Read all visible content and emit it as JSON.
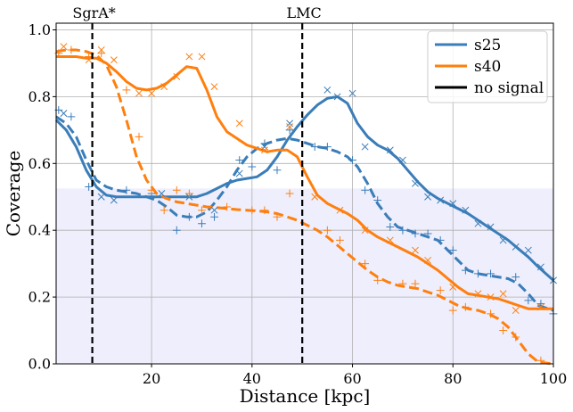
{
  "chart_data": {
    "type": "line",
    "title": "",
    "xlabel": "Distance [kpc]",
    "ylabel": "Coverage",
    "xlim": [
      1,
      100
    ],
    "ylim": [
      0.0,
      1.02
    ],
    "xticks": [
      20,
      40,
      60,
      80,
      100
    ],
    "yticks": [
      0.0,
      0.2,
      0.4,
      0.6,
      0.8,
      1.0
    ],
    "grid": true,
    "legend_position": "top-right",
    "legend": [
      {
        "label": "s25",
        "color": "#3a7db8",
        "style": "solid"
      },
      {
        "label": "s40",
        "color": "#ff7f0e",
        "style": "solid"
      },
      {
        "label": "no signal",
        "color": "#000000",
        "style": "solid"
      }
    ],
    "shaded_band": {
      "y_from": 0.0,
      "y_to": 0.525,
      "color": "#eeeefc"
    },
    "reference_lines": [
      {
        "x": 8.2,
        "label": "SgrA*"
      },
      {
        "x": 50,
        "label": "LMC"
      }
    ],
    "series": [
      {
        "name": "s25",
        "color": "#3a7db8",
        "style": "solid",
        "x": [
          1,
          3,
          5,
          7,
          9,
          11,
          13,
          15,
          17,
          19,
          21,
          23,
          25,
          27,
          29,
          31,
          33,
          35,
          37,
          39,
          41,
          43,
          45,
          47,
          49,
          51,
          53,
          55,
          57,
          59,
          61,
          63,
          65,
          67,
          69,
          71,
          73,
          75,
          77,
          79,
          81,
          83,
          85,
          87,
          89,
          91,
          93,
          95,
          97,
          100
        ],
        "y": [
          0.73,
          0.7,
          0.65,
          0.58,
          0.53,
          0.505,
          0.5,
          0.5,
          0.5,
          0.5,
          0.5,
          0.5,
          0.5,
          0.5,
          0.5,
          0.51,
          0.525,
          0.54,
          0.55,
          0.555,
          0.56,
          0.58,
          0.62,
          0.67,
          0.71,
          0.745,
          0.775,
          0.795,
          0.8,
          0.78,
          0.72,
          0.68,
          0.655,
          0.64,
          0.615,
          0.58,
          0.545,
          0.515,
          0.495,
          0.48,
          0.465,
          0.45,
          0.43,
          0.41,
          0.39,
          0.37,
          0.345,
          0.32,
          0.29,
          0.25
        ]
      },
      {
        "name": "s25 no signal",
        "color": "#3a7db8",
        "style": "dashed",
        "x": [
          1,
          3,
          5,
          7,
          9,
          11,
          13,
          15,
          17,
          19,
          21,
          23,
          25,
          27,
          29,
          31,
          33,
          35,
          37,
          39,
          41,
          43,
          45,
          47,
          49,
          51,
          53,
          55,
          57,
          59,
          61,
          63,
          65,
          67,
          69,
          71,
          73,
          75,
          77,
          79,
          81,
          83,
          85,
          87,
          89,
          91,
          93,
          95,
          97,
          100
        ],
        "y": [
          0.74,
          0.72,
          0.68,
          0.61,
          0.55,
          0.53,
          0.52,
          0.515,
          0.51,
          0.5,
          0.49,
          0.47,
          0.445,
          0.44,
          0.44,
          0.455,
          0.49,
          0.53,
          0.58,
          0.62,
          0.645,
          0.66,
          0.67,
          0.675,
          0.67,
          0.66,
          0.65,
          0.645,
          0.635,
          0.62,
          0.59,
          0.54,
          0.48,
          0.44,
          0.41,
          0.4,
          0.39,
          0.38,
          0.37,
          0.34,
          0.31,
          0.28,
          0.27,
          0.265,
          0.26,
          0.255,
          0.24,
          0.21,
          0.175,
          0.16
        ]
      },
      {
        "name": "s40",
        "color": "#ff7f0e",
        "style": "solid",
        "x": [
          1,
          3,
          5,
          7,
          9,
          11,
          13,
          15,
          17,
          19,
          21,
          23,
          25,
          27,
          29,
          31,
          33,
          35,
          37,
          39,
          41,
          43,
          45,
          47,
          49,
          51,
          53,
          55,
          57,
          59,
          61,
          63,
          65,
          67,
          69,
          71,
          73,
          75,
          77,
          79,
          81,
          83,
          85,
          87,
          89,
          91,
          93,
          95,
          97,
          100
        ],
        "y": [
          0.92,
          0.92,
          0.92,
          0.915,
          0.915,
          0.9,
          0.875,
          0.845,
          0.825,
          0.82,
          0.825,
          0.84,
          0.865,
          0.89,
          0.885,
          0.82,
          0.74,
          0.695,
          0.675,
          0.655,
          0.645,
          0.635,
          0.64,
          0.64,
          0.62,
          0.56,
          0.505,
          0.48,
          0.465,
          0.45,
          0.43,
          0.4,
          0.38,
          0.365,
          0.35,
          0.335,
          0.32,
          0.3,
          0.28,
          0.255,
          0.23,
          0.21,
          0.205,
          0.2,
          0.195,
          0.185,
          0.175,
          0.165,
          0.165,
          0.165
        ]
      },
      {
        "name": "s40 no signal",
        "color": "#ff7f0e",
        "style": "dashed",
        "x": [
          1,
          3,
          5,
          7,
          9,
          11,
          13,
          15,
          17,
          19,
          21,
          23,
          25,
          27,
          29,
          31,
          33,
          35,
          37,
          39,
          41,
          43,
          45,
          47,
          49,
          51,
          53,
          55,
          57,
          59,
          61,
          63,
          65,
          67,
          69,
          71,
          73,
          75,
          77,
          79,
          81,
          83,
          85,
          87,
          89,
          91,
          93,
          95,
          97,
          100
        ],
        "y": [
          0.935,
          0.94,
          0.94,
          0.935,
          0.925,
          0.895,
          0.83,
          0.73,
          0.62,
          0.55,
          0.51,
          0.495,
          0.485,
          0.48,
          0.475,
          0.47,
          0.468,
          0.465,
          0.462,
          0.46,
          0.458,
          0.455,
          0.45,
          0.44,
          0.43,
          0.415,
          0.4,
          0.38,
          0.355,
          0.33,
          0.305,
          0.28,
          0.26,
          0.245,
          0.235,
          0.23,
          0.225,
          0.215,
          0.205,
          0.19,
          0.175,
          0.165,
          0.16,
          0.15,
          0.135,
          0.11,
          0.07,
          0.03,
          0.005,
          0.0
        ]
      }
    ],
    "markers": [
      {
        "series": "s25",
        "symbol": "x",
        "color": "#3a7db8",
        "points": [
          [
            2.5,
            0.75
          ],
          [
            10,
            0.5
          ],
          [
            12.5,
            0.49
          ],
          [
            22,
            0.51
          ],
          [
            27.5,
            0.5
          ],
          [
            32.5,
            0.46
          ],
          [
            37.5,
            0.57
          ],
          [
            42.5,
            0.65
          ],
          [
            47.5,
            0.72
          ],
          [
            55,
            0.82
          ],
          [
            57,
            0.8
          ],
          [
            60,
            0.81
          ],
          [
            62.5,
            0.65
          ],
          [
            67.5,
            0.64
          ],
          [
            70,
            0.61
          ],
          [
            72.5,
            0.54
          ],
          [
            75,
            0.5
          ],
          [
            77.5,
            0.49
          ],
          [
            80,
            0.48
          ],
          [
            82.5,
            0.46
          ],
          [
            85,
            0.42
          ],
          [
            87.5,
            0.41
          ],
          [
            90,
            0.37
          ],
          [
            92.5,
            0.35
          ],
          [
            95,
            0.34
          ],
          [
            97.5,
            0.29
          ],
          [
            100,
            0.25
          ]
        ]
      },
      {
        "series": "s25 no signal",
        "symbol": "+",
        "color": "#3a7db8",
        "points": [
          [
            1.5,
            0.76
          ],
          [
            4,
            0.74
          ],
          [
            7.5,
            0.53
          ],
          [
            15,
            0.52
          ],
          [
            20,
            0.51
          ],
          [
            25,
            0.4
          ],
          [
            27.5,
            0.44
          ],
          [
            30,
            0.42
          ],
          [
            32.5,
            0.44
          ],
          [
            37.5,
            0.61
          ],
          [
            40,
            0.59
          ],
          [
            42.5,
            0.66
          ],
          [
            45,
            0.58
          ],
          [
            47.5,
            0.7
          ],
          [
            52.5,
            0.65
          ],
          [
            55,
            0.65
          ],
          [
            60,
            0.61
          ],
          [
            62.5,
            0.52
          ],
          [
            65,
            0.49
          ],
          [
            67.5,
            0.41
          ],
          [
            70,
            0.4
          ],
          [
            72.5,
            0.39
          ],
          [
            75,
            0.39
          ],
          [
            77.5,
            0.37
          ],
          [
            80,
            0.34
          ],
          [
            82.5,
            0.28
          ],
          [
            85,
            0.27
          ],
          [
            87.5,
            0.27
          ],
          [
            92.5,
            0.26
          ],
          [
            95,
            0.19
          ],
          [
            97.5,
            0.18
          ],
          [
            100,
            0.15
          ]
        ]
      },
      {
        "series": "s40",
        "symbol": "x",
        "color": "#ff7f0e",
        "points": [
          [
            2.5,
            0.95
          ],
          [
            7.5,
            0.91
          ],
          [
            10,
            0.94
          ],
          [
            12.5,
            0.91
          ],
          [
            17.5,
            0.81
          ],
          [
            20,
            0.81
          ],
          [
            22.5,
            0.83
          ],
          [
            25,
            0.86
          ],
          [
            27.5,
            0.92
          ],
          [
            30,
            0.92
          ],
          [
            32.5,
            0.83
          ],
          [
            37.5,
            0.72
          ],
          [
            42.5,
            0.64
          ],
          [
            47.5,
            0.71
          ],
          [
            52.5,
            0.5
          ],
          [
            57.5,
            0.46
          ],
          [
            62.5,
            0.4
          ],
          [
            67.5,
            0.37
          ],
          [
            72.5,
            0.34
          ],
          [
            75,
            0.31
          ],
          [
            80,
            0.23
          ],
          [
            85,
            0.21
          ],
          [
            87.5,
            0.2
          ],
          [
            90,
            0.21
          ],
          [
            92.5,
            0.16
          ],
          [
            97.5,
            0.17
          ]
        ]
      },
      {
        "series": "s40 no signal",
        "symbol": "+",
        "color": "#ff7f0e",
        "points": [
          [
            1.5,
            0.93
          ],
          [
            4,
            0.94
          ],
          [
            7.5,
            0.92
          ],
          [
            10,
            0.93
          ],
          [
            15,
            0.82
          ],
          [
            17.5,
            0.68
          ],
          [
            20,
            0.52
          ],
          [
            22.5,
            0.46
          ],
          [
            25,
            0.52
          ],
          [
            27.5,
            0.51
          ],
          [
            30,
            0.46
          ],
          [
            35,
            0.47
          ],
          [
            40,
            0.46
          ],
          [
            42.5,
            0.46
          ],
          [
            45,
            0.44
          ],
          [
            47.5,
            0.51
          ],
          [
            55,
            0.4
          ],
          [
            57.5,
            0.37
          ],
          [
            62.5,
            0.3
          ],
          [
            65,
            0.25
          ],
          [
            70,
            0.24
          ],
          [
            72.5,
            0.24
          ],
          [
            77.5,
            0.22
          ],
          [
            80,
            0.16
          ],
          [
            82.5,
            0.17
          ],
          [
            87.5,
            0.15
          ],
          [
            90,
            0.1
          ],
          [
            92.5,
            0.08
          ],
          [
            97.5,
            0.01
          ]
        ]
      }
    ]
  }
}
